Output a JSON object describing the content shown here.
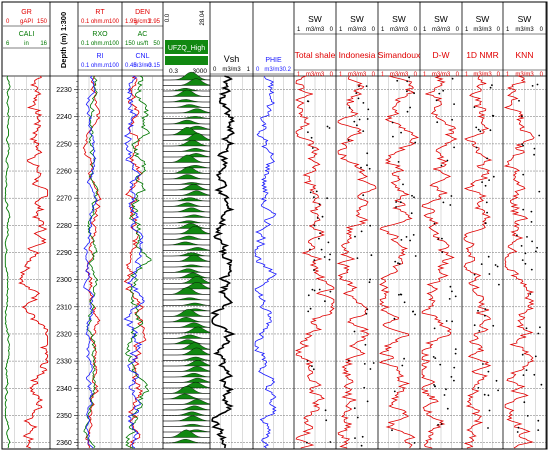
{
  "chart_data": {
    "type": "line",
    "depth_axis": {
      "label": "Depth (m) 1:300",
      "min": 2225,
      "max": 2362,
      "ticks": [
        2230,
        2240,
        2250,
        2260,
        2270,
        2280,
        2290,
        2300,
        2310,
        2320,
        2330,
        2340,
        2350,
        2360
      ]
    },
    "tracks": [
      {
        "id": "gr",
        "curves": [
          {
            "name": "GR",
            "color": "#e00000",
            "min": "0",
            "unit": "gAPI",
            "max": "150"
          },
          {
            "name": "CALI",
            "color": "#007700",
            "min": "6",
            "unit": "in",
            "max": "16"
          }
        ]
      },
      {
        "id": "res",
        "curves": [
          {
            "name": "RT",
            "color": "#e00000",
            "min": "0.1",
            "unit": "ohm.m",
            "max": "100"
          },
          {
            "name": "RXO",
            "color": "#007700",
            "min": "0.1",
            "unit": "ohm.m",
            "max": "100"
          },
          {
            "name": "RI",
            "color": "#1a1aff",
            "min": "0.1",
            "unit": "ohm.m",
            "max": "100"
          }
        ]
      },
      {
        "id": "por",
        "curves": [
          {
            "name": "DEN",
            "color": "#e00000",
            "min": "1.95",
            "unit": "g/cm3",
            "max": "2.95"
          },
          {
            "name": "AC",
            "color": "#007700",
            "min": "150",
            "unit": "us/ft",
            "max": "50"
          },
          {
            "name": "CNL",
            "color": "#1a1aff",
            "min": "0.45",
            "unit": "m3/m3",
            "max": "-0.15"
          }
        ]
      },
      {
        "id": "t2",
        "curves": [
          {
            "name": "UFZQ_High",
            "label": "UFZQ_High",
            "color": "#007700",
            "min": "0.3",
            "unit": "",
            "max": "3000"
          }
        ],
        "header_extra": [
          "0.0",
          "28.04"
        ]
      },
      {
        "id": "vsh",
        "curves": [
          {
            "name": "Vsh",
            "color": "#000000",
            "min": "0",
            "unit": "m3/m3",
            "max": "1"
          }
        ]
      },
      {
        "id": "phie",
        "curves": [
          {
            "name": "PHIE",
            "color": "#1a1aff",
            "min": "0",
            "unit": "m3/m3",
            "max": "0.2"
          }
        ]
      },
      {
        "id": "sw1",
        "curves": [
          {
            "name": "SW",
            "color": "#000000",
            "min": "1",
            "unit": "m3/m3",
            "max": "0"
          },
          {
            "name": "Total shale",
            "color": "#e00000",
            "min": "1",
            "unit": "m3/m3",
            "max": "0"
          }
        ]
      },
      {
        "id": "sw2",
        "curves": [
          {
            "name": "SW",
            "color": "#000000",
            "min": "1",
            "unit": "m3/m3",
            "max": "0"
          },
          {
            "name": "Indonesia",
            "color": "#e00000",
            "min": "1",
            "unit": "m3/m3",
            "max": "0"
          }
        ]
      },
      {
        "id": "sw3",
        "curves": [
          {
            "name": "SW",
            "color": "#000000",
            "min": "1",
            "unit": "m3/m3",
            "max": "0"
          },
          {
            "name": "Simandoux",
            "color": "#e00000",
            "min": "1",
            "unit": "m3/m3",
            "max": "0"
          }
        ]
      },
      {
        "id": "sw4",
        "curves": [
          {
            "name": "SW",
            "color": "#000000",
            "min": "1",
            "unit": "m3/m3",
            "max": "0"
          },
          {
            "name": "D-W",
            "color": "#e00000",
            "min": "1",
            "unit": "m3/m3",
            "max": "0"
          }
        ]
      },
      {
        "id": "sw5",
        "curves": [
          {
            "name": "SW",
            "color": "#000000",
            "min": "1",
            "unit": "m3/m3",
            "max": "0"
          },
          {
            "name": "1D NMR",
            "color": "#e00000",
            "min": "1",
            "unit": "m3/m3",
            "max": "0"
          }
        ]
      },
      {
        "id": "sw6",
        "curves": [
          {
            "name": "SW",
            "color": "#000000",
            "min": "1",
            "unit": "m3/m3",
            "max": "0"
          },
          {
            "name": "KNN",
            "color": "#e00000",
            "min": "1",
            "unit": "m3/m3",
            "max": "0"
          }
        ]
      }
    ]
  }
}
